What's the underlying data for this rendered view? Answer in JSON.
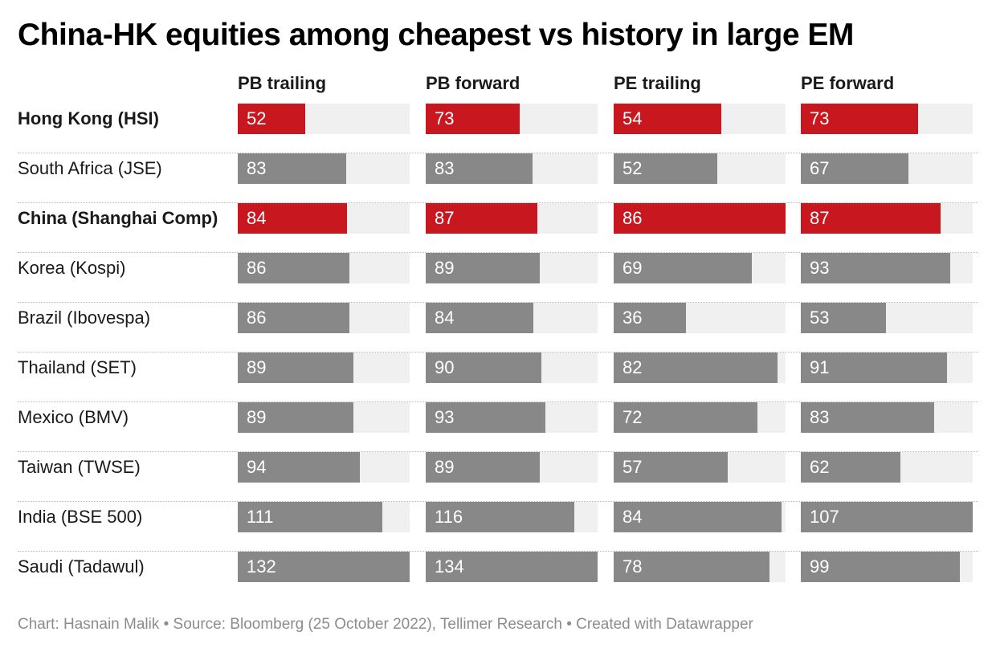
{
  "title": "China-HK equities among cheapest vs history in large EM",
  "footer": "Chart: Hasnain Malik • Source: Bloomberg (25 October 2022), Tellimer Research • Created with Datawrapper",
  "colors": {
    "highlight": "#c8171e",
    "default": "#888888",
    "track": "#f0f0f0"
  },
  "chart_data": {
    "type": "bar",
    "columns": [
      "PB trailing",
      "PB forward",
      "PE trailing",
      "PE forward"
    ],
    "scale_max": [
      132,
      134,
      86,
      107
    ],
    "rows": [
      {
        "label": "Hong Kong (HSI)",
        "highlight": true,
        "values": [
          52,
          73,
          54,
          73
        ]
      },
      {
        "label": "South Africa (JSE)",
        "highlight": false,
        "values": [
          83,
          83,
          52,
          67
        ]
      },
      {
        "label": "China (Shanghai Comp)",
        "highlight": true,
        "values": [
          84,
          87,
          86,
          87
        ]
      },
      {
        "label": "Korea (Kospi)",
        "highlight": false,
        "values": [
          86,
          89,
          69,
          93
        ]
      },
      {
        "label": "Brazil (Ibovespa)",
        "highlight": false,
        "values": [
          86,
          84,
          36,
          53
        ]
      },
      {
        "label": "Thailand (SET)",
        "highlight": false,
        "values": [
          89,
          90,
          82,
          91
        ]
      },
      {
        "label": "Mexico (BMV)",
        "highlight": false,
        "values": [
          89,
          93,
          72,
          83
        ]
      },
      {
        "label": "Taiwan (TWSE)",
        "highlight": false,
        "values": [
          94,
          89,
          57,
          62
        ]
      },
      {
        "label": "India (BSE 500)",
        "highlight": false,
        "values": [
          111,
          116,
          84,
          107
        ]
      },
      {
        "label": "Saudi (Tadawul)",
        "highlight": false,
        "values": [
          132,
          134,
          78,
          99
        ]
      }
    ]
  }
}
